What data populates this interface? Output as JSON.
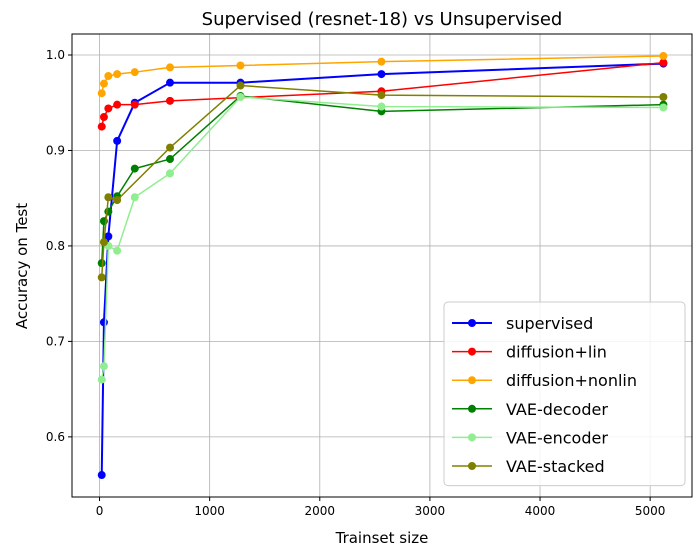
{
  "chart_data": {
    "type": "line",
    "title": "Supervised (resnet-18) vs Unsupervised",
    "xlabel": "Trainset size",
    "ylabel": "Accuracy on Test",
    "xlim": [
      -250,
      5380
    ],
    "ylim": [
      0.537,
      1.022
    ],
    "xticks": [
      0,
      1000,
      2000,
      3000,
      4000,
      5000
    ],
    "xtick_labels": [
      "0",
      "1000",
      "2000",
      "3000",
      "4000",
      "5000"
    ],
    "yticks": [
      0.6,
      0.7,
      0.8,
      0.9,
      1.0
    ],
    "ytick_labels": [
      "0.6",
      "0.7",
      "0.8",
      "0.9",
      "1.0"
    ],
    "grid": true,
    "legend_position": "lower-right",
    "series": [
      {
        "name": "supervised",
        "color": "#0000ff",
        "linewidth": 2,
        "x": [
          20,
          40,
          80,
          160,
          320,
          640,
          1280,
          2560,
          5120
        ],
        "y": [
          0.56,
          0.72,
          0.81,
          0.91,
          0.95,
          0.971,
          0.971,
          0.98,
          0.991
        ]
      },
      {
        "name": "diffusion+lin",
        "color": "#ff0000",
        "linewidth": 1.5,
        "x": [
          20,
          40,
          80,
          160,
          320,
          640,
          2560,
          5120
        ],
        "y": [
          0.925,
          0.935,
          0.944,
          0.948,
          0.948,
          0.952,
          0.962,
          0.992
        ]
      },
      {
        "name": "diffusion+nonlin",
        "color": "#ffa500",
        "linewidth": 1.5,
        "x": [
          20,
          40,
          80,
          160,
          320,
          640,
          1280,
          2560,
          5120
        ],
        "y": [
          0.96,
          0.97,
          0.978,
          0.98,
          0.982,
          0.987,
          0.989,
          0.993,
          0.999
        ]
      },
      {
        "name": "VAE-decoder",
        "color": "#008000",
        "linewidth": 1.5,
        "x": [
          20,
          40,
          80,
          160,
          320,
          640,
          1280,
          2560,
          5120
        ],
        "y": [
          0.782,
          0.826,
          0.836,
          0.852,
          0.881,
          0.891,
          0.957,
          0.941,
          0.948
        ]
      },
      {
        "name": "VAE-encoder",
        "color": "#90ee90",
        "linewidth": 1.5,
        "x": [
          20,
          40,
          80,
          160,
          320,
          640,
          1280,
          2560,
          5120
        ],
        "y": [
          0.66,
          0.674,
          0.8,
          0.795,
          0.851,
          0.876,
          0.956,
          0.946,
          0.945
        ]
      },
      {
        "name": "VAE-stacked",
        "color": "#808000",
        "linewidth": 1.5,
        "x": [
          20,
          40,
          80,
          160,
          640,
          1280,
          2560,
          5120
        ],
        "y": [
          0.767,
          0.804,
          0.851,
          0.848,
          0.903,
          0.968,
          0.958,
          0.956
        ]
      }
    ]
  }
}
